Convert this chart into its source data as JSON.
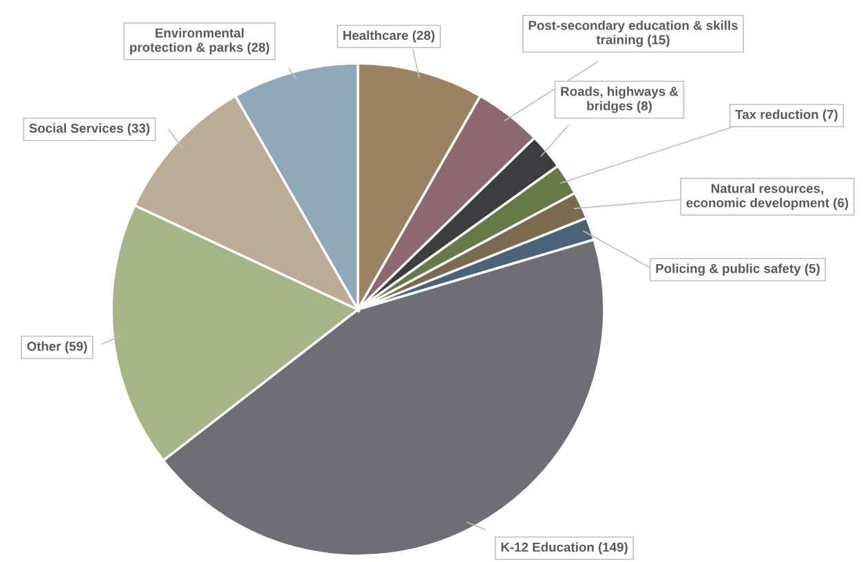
{
  "chart_data": {
    "type": "pie",
    "categories": [
      "Healthcare (28)",
      "Post-secondary education & skills training (15)",
      "Roads, highways & bridges (8)",
      "Tax reduction (7)",
      "Natural resources, economic development (6)",
      "Policing & public safety (5)",
      "K-12 Education (149)",
      "Other (59)",
      "Social Services (33)",
      "Environmental protection & parks (28)"
    ],
    "values": [
      28,
      15,
      8,
      7,
      6,
      5,
      149,
      59,
      33,
      28
    ],
    "colors": [
      "#9b8262",
      "#8e6870",
      "#3d3d3f",
      "#657a47",
      "#7c6a4e",
      "#4a6378",
      "#6f6e74",
      "#a6b587",
      "#bcab95",
      "#91a8b8"
    ]
  }
}
